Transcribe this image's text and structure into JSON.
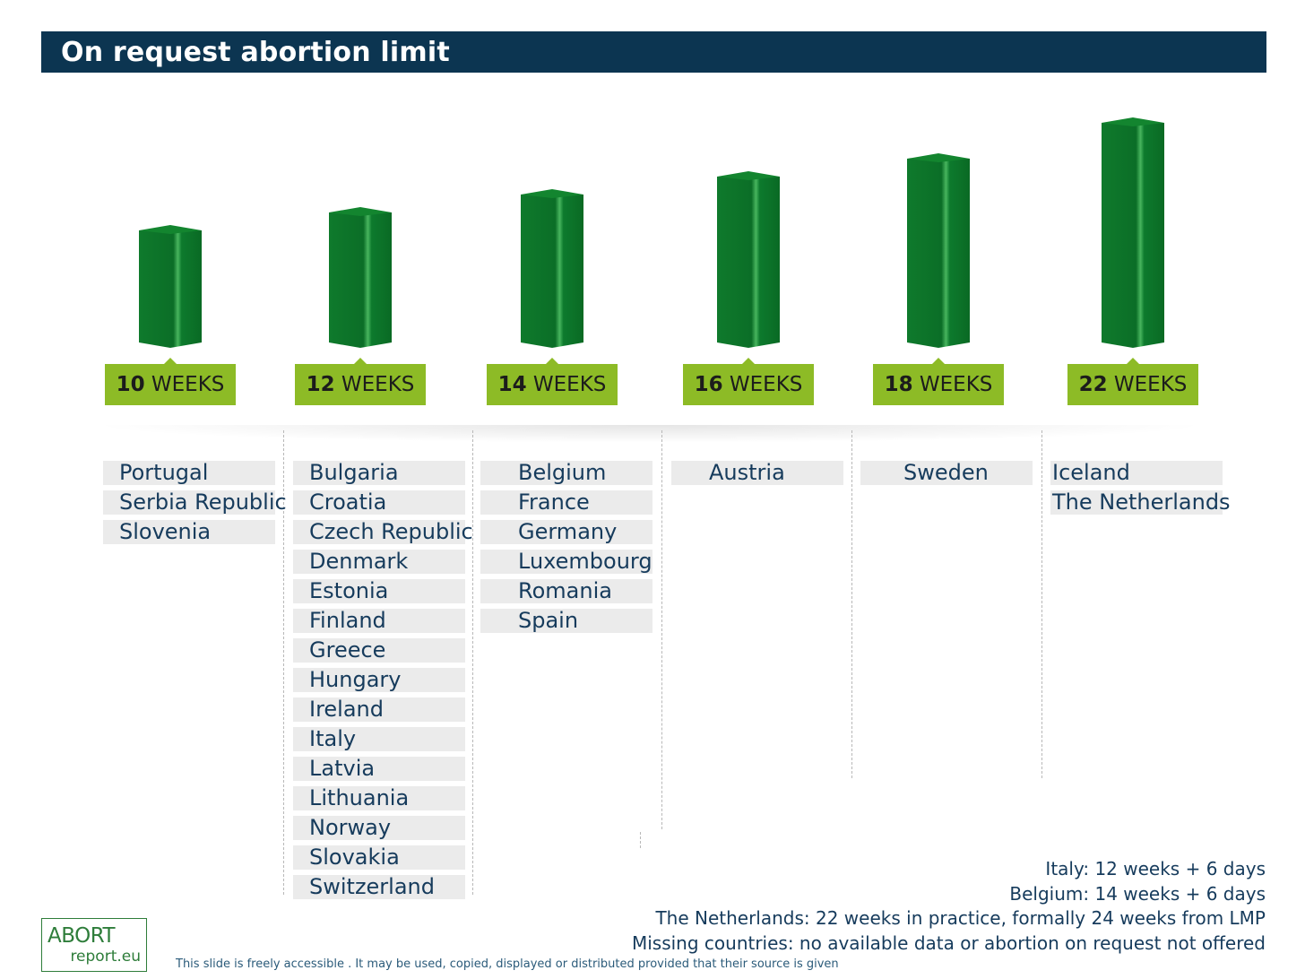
{
  "title": "On request abortion limit",
  "chart_data": {
    "type": "bar",
    "title": "On request abortion limit",
    "unit": "WEEKS",
    "categories": [
      "10",
      "12",
      "14",
      "16",
      "18",
      "22"
    ],
    "values": [
      10,
      12,
      14,
      16,
      18,
      22
    ],
    "countries": [
      [
        "Portugal",
        "Serbia Republic",
        "Slovenia"
      ],
      [
        "Bulgaria",
        "Croatia",
        "Czech Republic",
        "Denmark",
        "Estonia",
        "Finland",
        "Greece",
        "Hungary",
        "Ireland",
        "Italy",
        "Latvia",
        "Lithuania",
        "Norway",
        "Slovakia",
        "Switzerland"
      ],
      [
        "Belgium",
        "France",
        "Germany",
        "Luxembourg",
        "Romania",
        "Spain"
      ],
      [
        "Austria"
      ],
      [
        "Sweden"
      ],
      [
        "Iceland",
        "The Netherlands"
      ]
    ],
    "bar_color": "#1a8a32",
    "label_color": "#8dbb26"
  },
  "notes": [
    "Italy: 12 weeks + 6 days",
    "Belgium: 14 weeks + 6 days",
    "The Netherlands: 22 weeks in practice, formally 24 weeks from LMP",
    "Missing countries: no available data or abortion on request not offered"
  ],
  "logo": {
    "line1": "ABORT",
    "line2": "report.eu"
  },
  "footer": "This slide is freely accessible . It may be used, copied, displayed or distributed provided that their source is given",
  "colors": {
    "title_bg": "#0c3551",
    "text": "#163b5c"
  }
}
